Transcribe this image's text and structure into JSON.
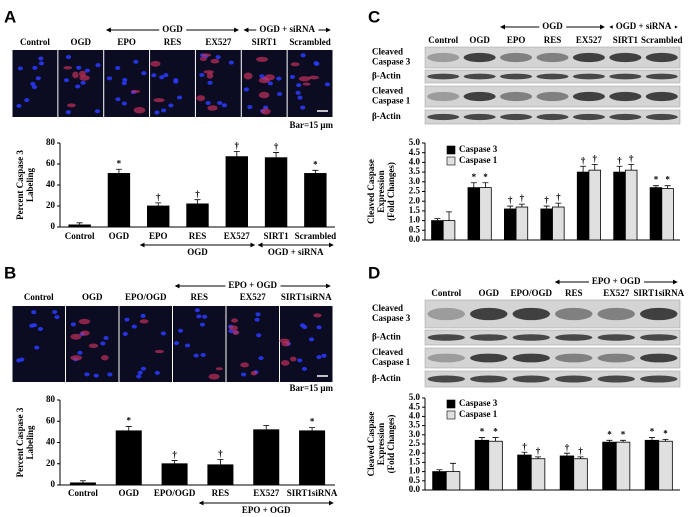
{
  "panels": [
    {
      "letter": "A",
      "labels": [
        "Control",
        "OGD",
        "EPO",
        "RES",
        "EX527",
        "SIRT1",
        "Scrambled"
      ],
      "groups": [
        {
          "label": "OGD",
          "span": [
            2,
            4
          ]
        },
        {
          "label": "OGD + siRNA",
          "span": [
            5,
            6
          ]
        }
      ],
      "scale": "Bar=15 μm"
    },
    {
      "letter": "B",
      "labels": [
        "Control",
        "OGD",
        "EPO/OGD",
        "RES",
        "EX527",
        "SIRT1siRNA"
      ],
      "groups": [
        {
          "label": "EPO + OGD",
          "span": [
            3,
            5
          ]
        }
      ],
      "scale": "Bar=15 μm"
    },
    {
      "letter": "C",
      "groups": [
        {
          "label": "OGD",
          "span": [
            2,
            4
          ]
        },
        {
          "label": "OGD + siRNA",
          "span": [
            5,
            6
          ]
        }
      ],
      "rows": [
        [
          "Cleaved",
          "Caspase 3"
        ],
        [
          "β-Actin"
        ],
        [
          "Cleaved",
          "Caspase 1"
        ],
        [
          "β-Actin"
        ]
      ]
    },
    {
      "letter": "D",
      "groups": [
        {
          "label": "EPO + OGD",
          "span": [
            3,
            5
          ]
        }
      ],
      "rows": [
        [
          "Cleaved",
          "Caspase 3"
        ],
        [
          "β-Actin"
        ],
        [
          "Cleaved",
          "Caspase 1"
        ],
        [
          "β-Actin"
        ]
      ]
    }
  ],
  "chart_data": [
    {
      "type": "bar",
      "ylabel": [
        "Percent Caspase 3",
        "Labeling"
      ],
      "categories": [
        "Control",
        "OGD",
        "EPO",
        "RES",
        "EX527",
        "SIRT1",
        "Scrambled"
      ],
      "values": [
        2,
        51,
        20,
        22,
        67,
        66,
        51
      ],
      "errors": [
        2,
        4,
        3,
        4,
        5,
        5,
        3
      ],
      "significance": [
        null,
        "*",
        "†",
        "†",
        "†",
        "†",
        "*"
      ],
      "color": "#000000",
      "groups": [
        {
          "label": "OGD",
          "span": [
            2,
            4
          ]
        },
        {
          "label": "OGD + siRNA",
          "span": [
            5,
            6
          ]
        }
      ],
      "ylim": [
        0,
        80
      ],
      "yticks": [
        0,
        20,
        40,
        60,
        80
      ]
    },
    {
      "type": "bar",
      "ylabel": [
        "Percent Caspase 3",
        "Labeling"
      ],
      "categories": [
        "Control",
        "OGD",
        "EPO/OGD",
        "RES",
        "EX527",
        "SIRT1siRNA"
      ],
      "values": [
        2,
        51,
        20,
        19,
        52,
        51
      ],
      "errors": [
        2,
        4,
        3,
        5,
        4,
        3
      ],
      "significance": [
        null,
        "*",
        "†",
        "†",
        null,
        "*"
      ],
      "color": "#000000",
      "groups": [
        {
          "label": "EPO + OGD",
          "span": [
            3,
            5
          ]
        }
      ],
      "ylim": [
        0,
        80
      ],
      "yticks": [
        0,
        20,
        40,
        60,
        80
      ]
    },
    {
      "type": "bar",
      "ylabel": [
        "Cleaved Caspase",
        "Expression",
        "(Fold Changes)"
      ],
      "categories": [
        "Control",
        "OGD",
        "EPO",
        "RES",
        "EX527",
        "SIRT1",
        "Scrambled"
      ],
      "series": [
        {
          "name": "Caspase 3",
          "color": "#000000",
          "values": [
            1.0,
            2.7,
            1.6,
            1.6,
            3.5,
            3.5,
            2.7
          ],
          "errors": [
            0.1,
            0.25,
            0.15,
            0.15,
            0.3,
            0.3,
            0.1
          ],
          "significance": [
            null,
            "*",
            "†",
            "†",
            "†",
            "†",
            "*"
          ]
        },
        {
          "name": "Caspase 1",
          "color": "#e0e0e0",
          "values": [
            1.0,
            2.7,
            1.7,
            1.7,
            3.6,
            3.6,
            2.65
          ],
          "errors": [
            0.45,
            0.25,
            0.15,
            0.2,
            0.3,
            0.3,
            0.15
          ],
          "significance": [
            null,
            "*",
            "†",
            "†",
            "†",
            "†",
            "*"
          ]
        }
      ],
      "ylim": [
        0,
        5
      ],
      "yticks": [
        {
          "value": 0,
          "label": "0.0"
        },
        {
          "value": 0.5,
          "label": "0.5"
        },
        {
          "value": 1,
          "label": "1.0"
        },
        {
          "value": 1.5,
          "label": "1.5"
        },
        {
          "value": 2,
          "label": "2.0"
        },
        {
          "value": 2.5,
          "label": "2.5"
        },
        {
          "value": 3,
          "label": "3.0"
        },
        {
          "value": 3.5,
          "label": "3.5"
        },
        {
          "value": 4,
          "label": "4.0"
        },
        {
          "value": 4.5,
          "label": "4.5"
        },
        {
          "value": 5,
          "label": "5.0"
        }
      ]
    },
    {
      "type": "bar",
      "ylabel": [
        "Cleaved Caspase",
        "Expression",
        "(Fold Changes)"
      ],
      "categories": [
        "Control",
        "OGD",
        "EPO/OGD",
        "RES",
        "EX527",
        "SIRT1siRNA"
      ],
      "series": [
        {
          "name": "Caspase 3",
          "color": "#000000",
          "values": [
            1.0,
            2.7,
            1.9,
            1.85,
            2.6,
            2.7
          ],
          "errors": [
            0.1,
            0.15,
            0.15,
            0.15,
            0.1,
            0.15
          ],
          "significance": [
            null,
            "*",
            "†",
            "†",
            "*",
            "*"
          ]
        },
        {
          "name": "Caspase 1",
          "color": "#e0e0e0",
          "values": [
            1.0,
            2.65,
            1.7,
            1.7,
            2.6,
            2.65
          ],
          "errors": [
            0.45,
            0.2,
            0.1,
            0.1,
            0.1,
            0.1
          ],
          "significance": [
            null,
            "*",
            "†",
            "†",
            "*",
            "*"
          ]
        }
      ],
      "ylim": [
        0,
        5
      ],
      "yticks": [
        {
          "value": 0,
          "label": "0.0"
        },
        {
          "value": 0.5,
          "label": "0.5"
        },
        {
          "value": 1,
          "label": "1.0"
        },
        {
          "value": 1.5,
          "label": "1.5"
        },
        {
          "value": 2,
          "label": "2.0"
        },
        {
          "value": 2.5,
          "label": "2.5"
        },
        {
          "value": 3,
          "label": "3.0"
        },
        {
          "value": 3.5,
          "label": "3.5"
        },
        {
          "value": 4,
          "label": "4.0"
        },
        {
          "value": 4.5,
          "label": "4.5"
        },
        {
          "value": 5,
          "label": "5.0"
        }
      ]
    }
  ]
}
